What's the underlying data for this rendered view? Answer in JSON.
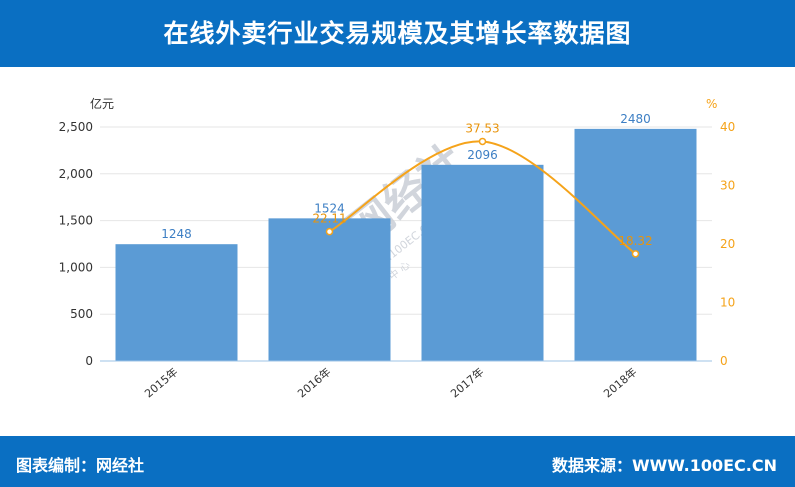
{
  "header": {
    "title": "在线外卖行业交易规模及其增长率数据图"
  },
  "footer": {
    "editor": "图表编制：网经社",
    "source": "数据来源：WWW.100EC.CN"
  },
  "watermark": {
    "logo": "WS网经社",
    "site": "WWW.100EC.CN",
    "tagline": "电 子 商 务 研 究 中 心"
  },
  "colors": {
    "header_bg": "#0a6fc2",
    "bar": "#5b9bd5",
    "line": "#f5a31a",
    "bar_label": "#3d7fc4",
    "line_label": "#e8940c"
  },
  "chart_data": {
    "type": "bar",
    "categories": [
      "2015年",
      "2016年",
      "2017年",
      "2018年"
    ],
    "series": [
      {
        "type": "bar",
        "axis": "left",
        "values": [
          1248,
          1524,
          2096,
          2480
        ]
      },
      {
        "type": "line",
        "axis": "right",
        "values": [
          null,
          22.11,
          37.53,
          18.32
        ]
      }
    ],
    "left_axis": {
      "unit": "亿元",
      "min": 0,
      "max": 2500,
      "ticks": [
        0,
        500,
        1000,
        1500,
        2000,
        2500
      ],
      "tick_labels": [
        "0",
        "500",
        "1,000",
        "1,500",
        "2,000",
        "2,500"
      ]
    },
    "right_axis": {
      "unit": "%",
      "min": 0,
      "max": 40,
      "ticks": [
        0,
        10,
        20,
        30,
        40
      ],
      "tick_labels": [
        "0",
        "10",
        "20",
        "30",
        "40"
      ]
    },
    "bar_labels": [
      "1248",
      "1524",
      "2096",
      "2480"
    ],
    "line_labels": [
      "",
      "22.11",
      "37.53",
      "18.32"
    ],
    "grid": true
  }
}
